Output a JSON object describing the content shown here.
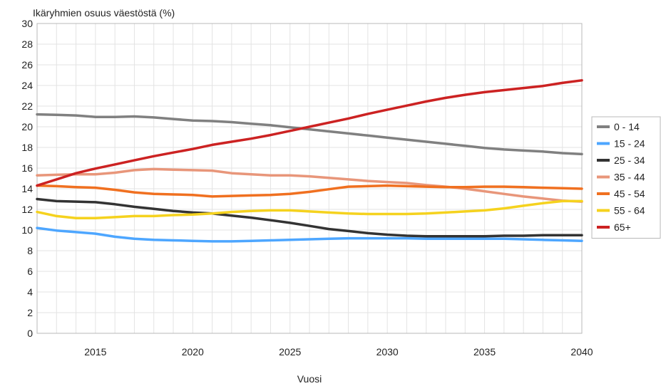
{
  "chart_data": {
    "type": "line",
    "title": "",
    "ylabel": "Ikäryhmien osuus väestöstä (%)",
    "xlabel": "Vuosi",
    "xlim": [
      2012,
      2040
    ],
    "ylim": [
      0,
      30
    ],
    "x_ticks": [
      2015,
      2020,
      2025,
      2030,
      2035,
      2040
    ],
    "y_ticks": [
      0,
      2,
      4,
      6,
      8,
      10,
      12,
      14,
      16,
      18,
      20,
      22,
      24,
      26,
      28,
      30
    ],
    "grid": true,
    "legend_position": "right",
    "x": [
      2012,
      2013,
      2014,
      2015,
      2016,
      2017,
      2018,
      2019,
      2020,
      2021,
      2022,
      2023,
      2024,
      2025,
      2026,
      2027,
      2028,
      2029,
      2030,
      2031,
      2032,
      2033,
      2034,
      2035,
      2036,
      2037,
      2038,
      2039,
      2040
    ],
    "series": [
      {
        "name": "0 - 14",
        "color": "#808080",
        "values": [
          21.2,
          21.15,
          21.1,
          20.95,
          20.95,
          21.0,
          20.9,
          20.75,
          20.6,
          20.55,
          20.45,
          20.3,
          20.15,
          19.95,
          19.75,
          19.55,
          19.35,
          19.15,
          18.95,
          18.75,
          18.55,
          18.35,
          18.15,
          17.95,
          17.8,
          17.7,
          17.6,
          17.45,
          17.35
        ]
      },
      {
        "name": "15 - 24",
        "color": "#4da6ff",
        "values": [
          10.2,
          9.95,
          9.8,
          9.65,
          9.35,
          9.15,
          9.05,
          9.0,
          8.95,
          8.9,
          8.9,
          8.95,
          9.0,
          9.05,
          9.1,
          9.15,
          9.2,
          9.2,
          9.2,
          9.2,
          9.15,
          9.15,
          9.15,
          9.15,
          9.15,
          9.1,
          9.05,
          9.0,
          8.95
        ]
      },
      {
        "name": "25 - 34",
        "color": "#333333",
        "values": [
          13.0,
          12.8,
          12.75,
          12.7,
          12.5,
          12.25,
          12.05,
          11.85,
          11.7,
          11.6,
          11.4,
          11.2,
          10.95,
          10.7,
          10.4,
          10.1,
          9.9,
          9.7,
          9.55,
          9.45,
          9.4,
          9.4,
          9.4,
          9.4,
          9.45,
          9.45,
          9.5,
          9.5,
          9.5
        ]
      },
      {
        "name": "35 - 44",
        "color": "#e8967a",
        "values": [
          15.3,
          15.35,
          15.4,
          15.4,
          15.55,
          15.8,
          15.9,
          15.85,
          15.8,
          15.75,
          15.5,
          15.4,
          15.3,
          15.3,
          15.2,
          15.05,
          14.9,
          14.75,
          14.65,
          14.55,
          14.35,
          14.2,
          14.0,
          13.75,
          13.5,
          13.25,
          13.05,
          12.85,
          12.75
        ]
      },
      {
        "name": "45 - 54",
        "color": "#f07020",
        "values": [
          14.3,
          14.25,
          14.15,
          14.1,
          13.9,
          13.65,
          13.5,
          13.45,
          13.4,
          13.25,
          13.3,
          13.35,
          13.4,
          13.5,
          13.7,
          13.95,
          14.2,
          14.25,
          14.3,
          14.25,
          14.2,
          14.15,
          14.15,
          14.2,
          14.2,
          14.15,
          14.1,
          14.05,
          14.0
        ]
      },
      {
        "name": "55 - 64",
        "color": "#f5d21e",
        "values": [
          11.75,
          11.35,
          11.15,
          11.15,
          11.25,
          11.35,
          11.35,
          11.45,
          11.5,
          11.6,
          11.75,
          11.85,
          11.9,
          11.9,
          11.8,
          11.7,
          11.6,
          11.55,
          11.55,
          11.55,
          11.6,
          11.7,
          11.8,
          11.9,
          12.1,
          12.35,
          12.6,
          12.8,
          12.8
        ]
      },
      {
        "name": "65+",
        "color": "#cc2222",
        "values": [
          14.3,
          14.9,
          15.5,
          15.95,
          16.35,
          16.75,
          17.15,
          17.5,
          17.85,
          18.25,
          18.55,
          18.85,
          19.2,
          19.6,
          20.0,
          20.4,
          20.8,
          21.25,
          21.65,
          22.05,
          22.45,
          22.8,
          23.1,
          23.35,
          23.55,
          23.75,
          23.95,
          24.25,
          24.5
        ]
      }
    ]
  }
}
